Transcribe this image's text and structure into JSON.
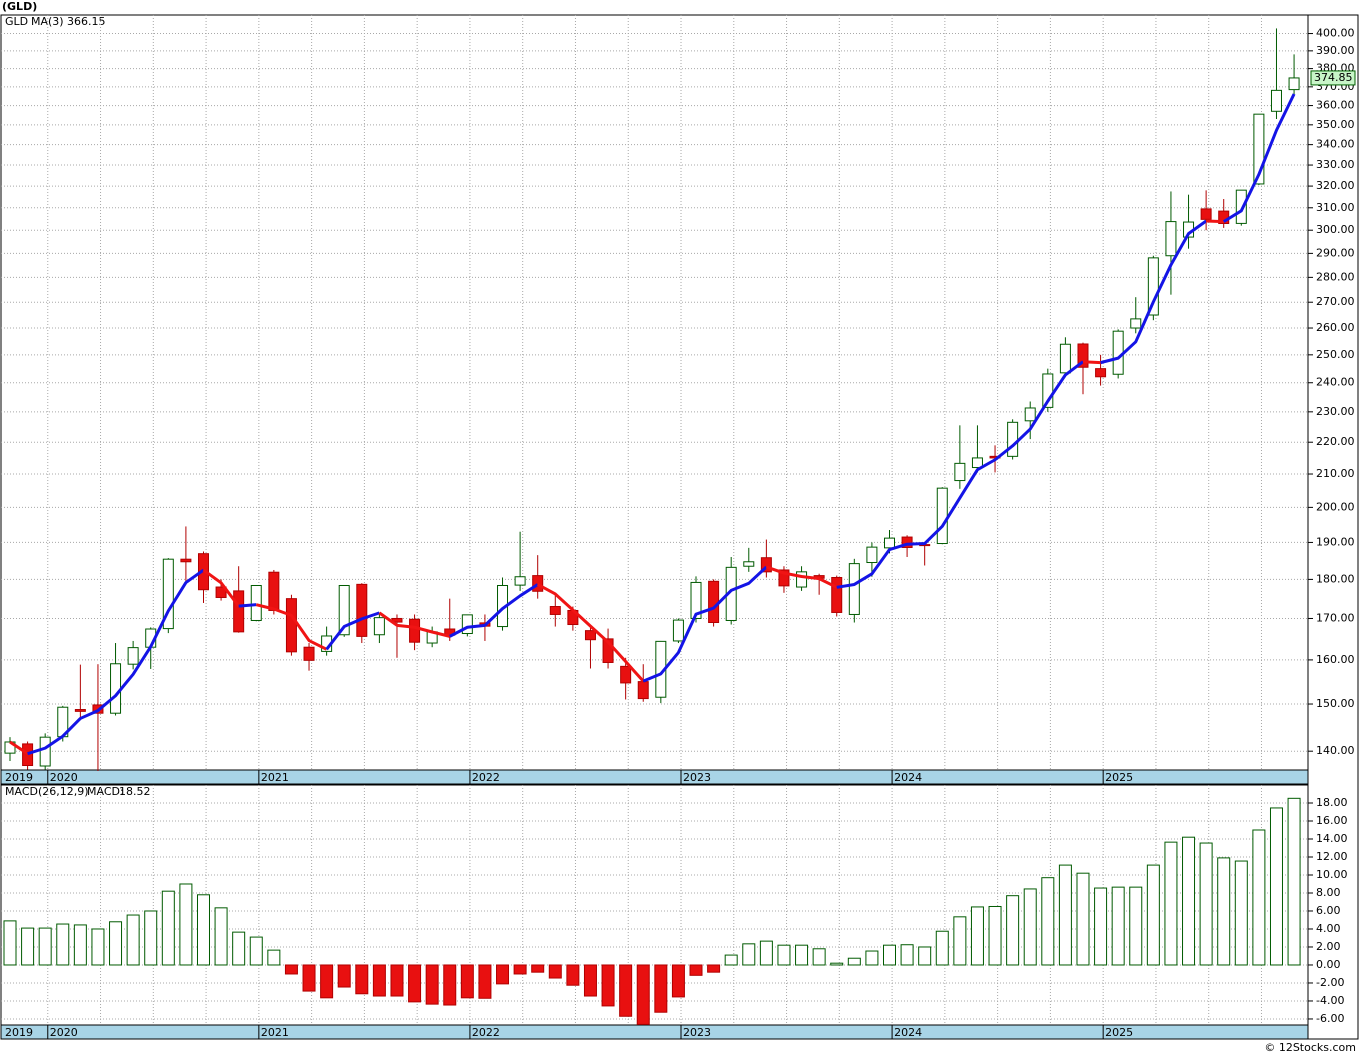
{
  "chart_data": [
    {
      "type": "candlestick",
      "title": "(GLD)",
      "symbol": "GLD",
      "indicator": "MA(3)",
      "categories": [
        "2019",
        null,
        null,
        "2020",
        null,
        null,
        null,
        null,
        null,
        null,
        null,
        null,
        null,
        null,
        null,
        "2021",
        null,
        null,
        null,
        null,
        null,
        null,
        null,
        null,
        null,
        null,
        null,
        "2022",
        null,
        null,
        null,
        null,
        null,
        null,
        null,
        null,
        null,
        null,
        null,
        "2023",
        null,
        null,
        null,
        null,
        null,
        null,
        null,
        null,
        null,
        null,
        null,
        "2024",
        null,
        null,
        null,
        null,
        null,
        null,
        null,
        null,
        null,
        null,
        null,
        "2025",
        null,
        null,
        null,
        null,
        null,
        null,
        null,
        null,
        null,
        null
      ],
      "open": [
        139.6,
        141.5,
        137,
        143,
        148.8,
        149.8,
        148,
        159,
        163,
        167.5,
        185.4,
        186.9,
        178,
        177,
        169.5,
        181.9,
        175,
        163,
        162,
        166,
        178.7,
        166,
        170,
        169.8,
        164,
        167.4,
        166.3,
        168.9,
        168,
        178.5,
        181,
        173,
        172,
        167,
        165,
        158.5,
        155,
        151.5,
        164.5,
        170,
        179.5,
        169.5,
        183.5,
        185.8,
        182.5,
        178,
        181,
        180.5,
        171,
        184.5,
        188.5,
        191.5,
        189.4,
        189.7,
        208,
        212,
        215.5,
        215.5,
        227,
        231.5,
        243.5,
        254,
        245,
        243,
        260,
        265,
        289,
        297,
        309.5,
        308.5,
        303,
        321,
        357,
        368.5
      ],
      "high": [
        142.9,
        142,
        143.7,
        149.6,
        158.9,
        159,
        164,
        164.5,
        167.8,
        185.7,
        194.5,
        187.5,
        180,
        183.5,
        178.5,
        182.5,
        176,
        164,
        168,
        178.4,
        179,
        171,
        171,
        171,
        168,
        175,
        170.8,
        171,
        180.5,
        193,
        186.5,
        176,
        173,
        168,
        167.5,
        160.5,
        159,
        164.5,
        170,
        180.8,
        180,
        186,
        188.5,
        190.8,
        183.5,
        183.5,
        181.5,
        181,
        185.5,
        190,
        193.5,
        192,
        190,
        206,
        225.5,
        225.5,
        219,
        227.5,
        233.5,
        245,
        256.5,
        254.5,
        250,
        259.5,
        272,
        289,
        317.5,
        316,
        318,
        314,
        318,
        355.5,
        403,
        388
      ],
      "low": [
        138,
        136.3,
        136.3,
        142,
        146.5,
        136,
        147.5,
        157.8,
        157.9,
        166.4,
        179,
        173.9,
        174.5,
        166.5,
        169.3,
        171,
        161,
        157.5,
        161,
        165.5,
        164,
        164,
        160.5,
        162.3,
        163,
        164.5,
        165.6,
        164.5,
        167,
        177,
        175,
        168,
        167,
        158,
        158,
        151,
        150.5,
        150.2,
        164,
        169,
        168,
        168.5,
        182,
        180.5,
        176.5,
        177,
        176,
        170.5,
        169,
        180.7,
        187,
        186,
        183.7,
        189.5,
        205.5,
        210.5,
        210.5,
        214.5,
        221,
        230,
        242,
        236,
        239,
        241.5,
        258,
        263,
        273,
        292,
        300,
        301,
        302,
        320.5,
        353,
        366
      ],
      "close": [
        141.9,
        137.1,
        142.9,
        149.3,
        148.4,
        148.0,
        159.1,
        162.9,
        167.4,
        185.4,
        184.7,
        177.3,
        175.3,
        166.7,
        178.4,
        172.0,
        161.9,
        159.9,
        165.7,
        178.4,
        165.6,
        170.2,
        169.1,
        164.2,
        166.7,
        165.9,
        170.9,
        168.1,
        178.4,
        180.7,
        176.9,
        171.0,
        168.5,
        164.8,
        159.4,
        154.7,
        151.2,
        164.4,
        169.6,
        179.2,
        169.0,
        183.2,
        184.7,
        182.0,
        178.3,
        182.0,
        180.3,
        171.5,
        184.2,
        188.7,
        191.2,
        188.6,
        189.3,
        205.7,
        213.3,
        215.0,
        215.0,
        226.5,
        231.3,
        243.1,
        253.9,
        245.5,
        242.1,
        258.8,
        263.5,
        288.1,
        303.8,
        303.6,
        304.8,
        302.96,
        318.1,
        355.5,
        368.1,
        374.85
      ],
      "ma": [
        141.9,
        139.5,
        140.63,
        143.1,
        146.87,
        148.57,
        151.83,
        156.67,
        163.13,
        171.9,
        179.17,
        182.47,
        179.1,
        173.1,
        173.47,
        172.37,
        170.77,
        164.6,
        162.5,
        168.0,
        169.9,
        171.4,
        168.3,
        167.83,
        166.67,
        165.6,
        167.83,
        168.3,
        172.47,
        175.73,
        178.67,
        176.2,
        172.13,
        168.1,
        164.23,
        159.63,
        155.1,
        156.77,
        161.73,
        171.07,
        172.6,
        177.13,
        178.97,
        183.3,
        181.67,
        180.77,
        180.2,
        177.93,
        178.67,
        181.47,
        188.03,
        189.5,
        189.7,
        194.53,
        202.77,
        211.33,
        214.43,
        218.83,
        224.27,
        233.63,
        242.77,
        247.5,
        247.17,
        248.8,
        254.8,
        270.13,
        285.13,
        298.5,
        304.07,
        303.79,
        308.62,
        325.52,
        347.23,
        366.15
      ],
      "ylim": [
        136.2,
        411
      ],
      "log_scale": true,
      "yticks": [
        {
          "value": 140,
          "label": "140.00"
        },
        {
          "value": 150,
          "label": "150.00"
        },
        {
          "value": 160,
          "label": "160.00"
        },
        {
          "value": 170,
          "label": "170.00"
        },
        {
          "value": 180,
          "label": "180.00"
        },
        {
          "value": 190,
          "label": "190.00"
        },
        {
          "value": 200,
          "label": "200.00"
        },
        {
          "value": 210,
          "label": "210.00"
        },
        {
          "value": 220,
          "label": "220.00"
        },
        {
          "value": 230,
          "label": "230.00"
        },
        {
          "value": 240,
          "label": "240.00"
        },
        {
          "value": 250,
          "label": "250.00"
        },
        {
          "value": 260,
          "label": "260.00"
        },
        {
          "value": 270,
          "label": "270.00"
        },
        {
          "value": 280,
          "label": "280.00"
        },
        {
          "value": 290,
          "label": "290.00"
        },
        {
          "value": 300,
          "label": "300.00"
        },
        {
          "value": 310,
          "label": "310.00"
        },
        {
          "value": 320,
          "label": "320.00"
        },
        {
          "value": 330,
          "label": "330.00"
        },
        {
          "value": 340,
          "label": "340.00"
        },
        {
          "value": 350,
          "label": "350.00"
        },
        {
          "value": 360,
          "label": "360.00"
        },
        {
          "value": 370,
          "label": "370.00"
        },
        {
          "value": 380,
          "label": "380.00"
        },
        {
          "value": 390,
          "label": "390.00"
        },
        {
          "value": 400,
          "label": "400.00"
        }
      ],
      "grid": true,
      "up_color": "#ffffff",
      "up_edge": "#005a00",
      "down_color": "#e81010",
      "down_edge": "#b00000",
      "ma_rising_color": "#1414e6",
      "ma_falling_color": "#f01414",
      "last_color": "#c8f5c8"
    },
    {
      "type": "bar",
      "title": "MACD(26,12,9)",
      "value_prefix": "MACD:",
      "categories": [
        "2019",
        null,
        null,
        "2020",
        null,
        null,
        null,
        null,
        null,
        null,
        null,
        null,
        null,
        null,
        null,
        "2021",
        null,
        null,
        null,
        null,
        null,
        null,
        null,
        null,
        null,
        null,
        null,
        "2022",
        null,
        null,
        null,
        null,
        null,
        null,
        null,
        null,
        null,
        null,
        null,
        "2023",
        null,
        null,
        null,
        null,
        null,
        null,
        null,
        null,
        null,
        null,
        null,
        "2024",
        null,
        null,
        null,
        null,
        null,
        null,
        null,
        null,
        null,
        null,
        null,
        "2025",
        null,
        null,
        null,
        null,
        null,
        null,
        null,
        null,
        null,
        null
      ],
      "values": [
        4.9,
        4.1,
        4.1,
        4.55,
        4.45,
        4.0,
        4.8,
        5.55,
        6.0,
        8.2,
        9.0,
        7.8,
        6.35,
        3.65,
        3.1,
        1.65,
        -1.0,
        -2.9,
        -3.65,
        -2.45,
        -3.2,
        -3.45,
        -3.45,
        -4.1,
        -4.35,
        -4.45,
        -3.65,
        -3.7,
        -2.1,
        -1.0,
        -0.8,
        -1.45,
        -2.25,
        -3.45,
        -4.55,
        -5.7,
        -6.6,
        -5.25,
        -3.55,
        -1.15,
        -0.8,
        1.1,
        2.35,
        2.65,
        2.2,
        2.2,
        1.8,
        0.2,
        0.75,
        1.55,
        2.2,
        2.25,
        2.0,
        3.75,
        5.35,
        6.45,
        6.5,
        7.7,
        8.45,
        9.7,
        11.1,
        10.2,
        8.55,
        8.65,
        8.65,
        11.1,
        13.65,
        14.2,
        13.55,
        11.9,
        11.55,
        15.0,
        17.45,
        18.52
      ],
      "ylim": [
        -6.67,
        20
      ],
      "yticks": [
        {
          "value": -6,
          "label": "-6.00"
        },
        {
          "value": -4,
          "label": "-4.00"
        },
        {
          "value": -2,
          "label": "-2.00"
        },
        {
          "value": 0,
          "label": "0.00"
        },
        {
          "value": 2,
          "label": "2.00"
        },
        {
          "value": 4,
          "label": "4.00"
        },
        {
          "value": 6,
          "label": "6.00"
        },
        {
          "value": 8,
          "label": "8.00"
        },
        {
          "value": 10,
          "label": "10.00"
        },
        {
          "value": 12,
          "label": "12.00"
        },
        {
          "value": 14,
          "label": "14.00"
        },
        {
          "value": 16,
          "label": "16.00"
        },
        {
          "value": 18,
          "label": "18.00"
        }
      ],
      "grid": true,
      "positive_color": "#ffffff",
      "positive_edge": "#005a00",
      "negative_color": "#e81010",
      "negative_edge": "#b00000"
    }
  ],
  "footer": "© 12Stocks.com"
}
